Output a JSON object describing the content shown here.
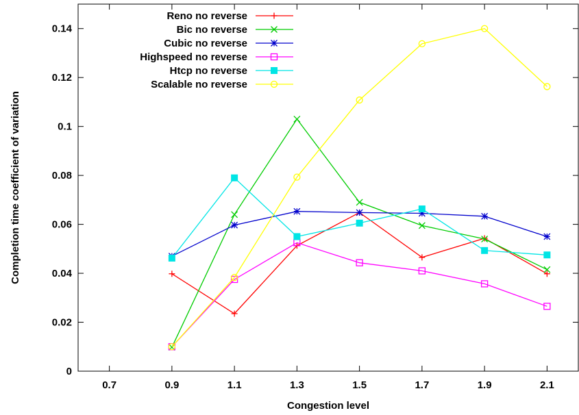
{
  "chart_data": {
    "type": "line",
    "title": "",
    "xlabel": "Congestion level",
    "ylabel": "Completion time coefficient of variation",
    "xlim": [
      0.6,
      2.2
    ],
    "ylim": [
      0,
      0.15
    ],
    "xticks": [
      0.7,
      0.9,
      1.1,
      1.3,
      1.5,
      1.7,
      1.9,
      2.1
    ],
    "xtick_labels": [
      "0.7",
      "0.9",
      "1.1",
      "1.3",
      "1.5",
      "1.7",
      "1.9",
      "2.1"
    ],
    "yticks": [
      0,
      0.02,
      0.04,
      0.06,
      0.08,
      0.1,
      0.12,
      0.14
    ],
    "ytick_labels": [
      "0",
      "0.02",
      "0.04",
      "0.06",
      "0.08",
      "0.1",
      "0.12",
      "0.14"
    ],
    "grid": false,
    "legend_position": "top-left",
    "x": [
      0.9,
      1.1,
      1.3,
      1.5,
      1.7,
      1.9,
      2.1
    ],
    "series": [
      {
        "name": "Reno no reverse",
        "color": "#ff0000",
        "marker": "plus",
        "values": [
          0.0398,
          0.0235,
          0.0513,
          0.0648,
          0.0465,
          0.0543,
          0.0398
        ]
      },
      {
        "name": "Bic no reverse",
        "color": "#00cc00",
        "marker": "cross",
        "values": [
          0.0098,
          0.064,
          0.103,
          0.069,
          0.0595,
          0.054,
          0.0415
        ]
      },
      {
        "name": "Cubic no reverse",
        "color": "#0000cc",
        "marker": "star",
        "values": [
          0.047,
          0.0597,
          0.0653,
          0.0648,
          0.0645,
          0.0633,
          0.055
        ]
      },
      {
        "name": "Highspeed no reverse",
        "color": "#ff00ff",
        "marker": "square-open",
        "values": [
          0.01,
          0.0375,
          0.0525,
          0.0443,
          0.041,
          0.0357,
          0.0265
        ]
      },
      {
        "name": "Htcp no reverse",
        "color": "#00e5e5",
        "marker": "square-filled",
        "values": [
          0.0462,
          0.079,
          0.055,
          0.0605,
          0.0663,
          0.0493,
          0.0475
        ]
      },
      {
        "name": "Scalable no reverse",
        "color": "#ffff00",
        "marker": "circle-open",
        "values": [
          0.01,
          0.0383,
          0.0793,
          0.1108,
          0.1338,
          0.14,
          0.1163
        ]
      }
    ]
  }
}
